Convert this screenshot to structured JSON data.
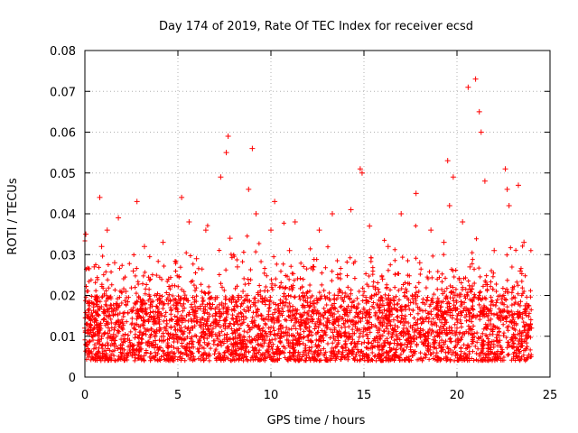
{
  "chart_data": {
    "type": "scatter",
    "title": "Day 174 of 2019, Rate Of TEC Index for receiver ecsd",
    "xlabel": "GPS time / hours",
    "ylabel": "ROTI / TECUs",
    "xlim": [
      0,
      25
    ],
    "ylim": [
      0,
      0.08
    ],
    "x_ticks": [
      0,
      5,
      10,
      15,
      20,
      25
    ],
    "x_tick_labels": [
      "0",
      "5",
      "10",
      "15",
      "20",
      "25"
    ],
    "y_ticks": [
      0,
      0.01,
      0.02,
      0.03,
      0.04,
      0.05,
      0.06,
      0.07,
      0.08
    ],
    "y_tick_labels": [
      "0",
      "0.01",
      "0.02",
      "0.03",
      "0.04",
      "0.05",
      "0.06",
      "0.07",
      "0.08"
    ],
    "grid": true,
    "marker": "+",
    "color": "#ff0000",
    "series": [
      {
        "name": "ROTI",
        "x": [
          0.0,
          0.05,
          0.1,
          0.2,
          0.3,
          0.5,
          0.7,
          0.8,
          0.9,
          1.0,
          1.2,
          1.4,
          1.6,
          1.8,
          2.0,
          2.2,
          2.4,
          2.6,
          2.8,
          2.9,
          3.0,
          3.2,
          3.5,
          3.8,
          4.0,
          4.2,
          4.5,
          4.8,
          5.0,
          5.2,
          5.4,
          5.6,
          5.8,
          6.0,
          6.2,
          6.5,
          6.8,
          7.0,
          7.3,
          7.6,
          7.7,
          7.8,
          8.0,
          8.2,
          8.5,
          8.8,
          9.0,
          9.2,
          9.5,
          9.8,
          10.0,
          10.2,
          10.5,
          10.8,
          11.0,
          11.3,
          11.6,
          12.0,
          12.3,
          12.6,
          13.0,
          13.3,
          13.6,
          14.0,
          14.3,
          14.6,
          14.8,
          14.9,
          15.0,
          15.3,
          15.6,
          16.0,
          16.3,
          16.6,
          17.0,
          17.3,
          17.6,
          17.8,
          18.0,
          18.3,
          18.6,
          19.0,
          19.3,
          19.5,
          19.6,
          19.8,
          20.0,
          20.3,
          20.6,
          20.7,
          21.0,
          21.2,
          21.3,
          21.5,
          21.8,
          22.0,
          22.3,
          22.6,
          22.7,
          22.8,
          23.0,
          23.3,
          23.4,
          23.6,
          23.8,
          24.0
        ],
        "y": [
          0.012,
          0.035,
          0.008,
          0.018,
          0.011,
          0.027,
          0.009,
          0.044,
          0.032,
          0.014,
          0.036,
          0.01,
          0.028,
          0.039,
          0.012,
          0.021,
          0.009,
          0.026,
          0.043,
          0.015,
          0.011,
          0.032,
          0.017,
          0.008,
          0.013,
          0.033,
          0.024,
          0.01,
          0.016,
          0.044,
          0.007,
          0.038,
          0.012,
          0.029,
          0.014,
          0.036,
          0.011,
          0.019,
          0.049,
          0.055,
          0.059,
          0.034,
          0.013,
          0.027,
          0.021,
          0.046,
          0.056,
          0.04,
          0.015,
          0.01,
          0.036,
          0.043,
          0.018,
          0.011,
          0.031,
          0.038,
          0.014,
          0.009,
          0.027,
          0.036,
          0.012,
          0.04,
          0.02,
          0.011,
          0.041,
          0.017,
          0.051,
          0.05,
          0.012,
          0.037,
          0.009,
          0.024,
          0.032,
          0.014,
          0.04,
          0.021,
          0.012,
          0.045,
          0.028,
          0.01,
          0.036,
          0.015,
          0.033,
          0.053,
          0.042,
          0.049,
          0.012,
          0.038,
          0.071,
          0.027,
          0.073,
          0.065,
          0.06,
          0.048,
          0.013,
          0.031,
          0.009,
          0.051,
          0.046,
          0.042,
          0.014,
          0.047,
          0.026,
          0.033,
          0.01,
          0.012
        ]
      }
    ]
  }
}
